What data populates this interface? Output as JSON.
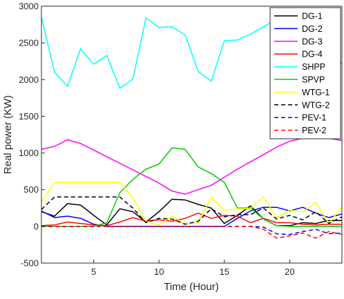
{
  "chart_data": {
    "type": "line",
    "title": "",
    "xlabel": "Time (Hour)",
    "ylabel": "Real power (KW)",
    "xlim": [
      1,
      24
    ],
    "ylim": [
      -500,
      3000
    ],
    "xticks": [
      5,
      10,
      15,
      20
    ],
    "yticks": [
      -500,
      0,
      500,
      1000,
      1500,
      2000,
      2500,
      3000
    ],
    "grid": false,
    "legend_position": "top-right",
    "x": [
      1,
      2,
      3,
      4,
      5,
      6,
      7,
      8,
      9,
      10,
      11,
      12,
      13,
      14,
      15,
      16,
      17,
      18,
      19,
      20,
      21,
      22,
      23,
      24
    ],
    "series": [
      {
        "name": "DG-1",
        "color": "#000000",
        "dash": "solid",
        "values": [
          200,
          140,
          310,
          290,
          150,
          20,
          240,
          200,
          60,
          200,
          370,
          360,
          300,
          250,
          40,
          150,
          280,
          100,
          10,
          10,
          50,
          40,
          80,
          80
        ]
      },
      {
        "name": "DG-2",
        "color": "#0000ff",
        "dash": "solid",
        "values": [
          210,
          120,
          140,
          110,
          30,
          0,
          0,
          0,
          0,
          0,
          0,
          0,
          0,
          0,
          0,
          110,
          210,
          260,
          260,
          210,
          260,
          180,
          120,
          170
        ]
      },
      {
        "name": "DG-3",
        "color": "#ff00ff",
        "dash": "solid",
        "values": [
          1050,
          1090,
          1180,
          1130,
          1040,
          950,
          860,
          770,
          680,
          590,
          480,
          440,
          500,
          560,
          670,
          780,
          880,
          980,
          1080,
          1160,
          1200,
          1200,
          1200,
          1170
        ]
      },
      {
        "name": "DG-4",
        "color": "#ff0000",
        "dash": "solid",
        "values": [
          10,
          20,
          60,
          40,
          20,
          10,
          60,
          120,
          70,
          90,
          70,
          110,
          180,
          110,
          150,
          140,
          50,
          110,
          50,
          50,
          30,
          20,
          30,
          30
        ]
      },
      {
        "name": "SHPP",
        "color": "#00ffff",
        "dash": "solid",
        "values": [
          2850,
          2100,
          1910,
          2420,
          2210,
          2330,
          1880,
          2010,
          2840,
          2710,
          2720,
          2610,
          2110,
          1980,
          2530,
          2540,
          2620,
          2720,
          2820,
          2870,
          2840,
          2830,
          2650,
          2200
        ]
      },
      {
        "name": "SPVP",
        "color": "#00cc00",
        "dash": "solid",
        "values": [
          0,
          0,
          0,
          0,
          0,
          50,
          460,
          640,
          780,
          850,
          1070,
          1050,
          810,
          720,
          600,
          250,
          250,
          100,
          10,
          0,
          0,
          0,
          0,
          0
        ]
      },
      {
        "name": "WTG-1",
        "color": "#ffff00",
        "dash": "solid",
        "values": [
          330,
          600,
          600,
          600,
          600,
          600,
          600,
          390,
          60,
          20,
          140,
          30,
          50,
          400,
          220,
          240,
          240,
          400,
          120,
          220,
          200,
          330,
          40,
          270
        ]
      },
      {
        "name": "WTG-2",
        "color": "#000000",
        "dash": "dashed",
        "values": [
          230,
          400,
          400,
          400,
          400,
          400,
          400,
          250,
          50,
          110,
          100,
          30,
          70,
          240,
          130,
          160,
          160,
          250,
          100,
          150,
          90,
          200,
          40,
          130
        ]
      },
      {
        "name": "PEV-1",
        "color": "#0000ff",
        "dash": "dashed",
        "values": [
          0,
          0,
          0,
          0,
          0,
          0,
          0,
          0,
          0,
          0,
          0,
          0,
          0,
          0,
          0,
          0,
          0,
          -10,
          -100,
          -110,
          -70,
          -40,
          -100,
          -90
        ]
      },
      {
        "name": "PEV-2",
        "color": "#ff0000",
        "dash": "dashed",
        "values": [
          0,
          0,
          0,
          0,
          0,
          0,
          0,
          0,
          0,
          0,
          0,
          0,
          0,
          0,
          0,
          0,
          0,
          -40,
          -160,
          -130,
          -90,
          -160,
          -70,
          -110
        ]
      }
    ]
  }
}
